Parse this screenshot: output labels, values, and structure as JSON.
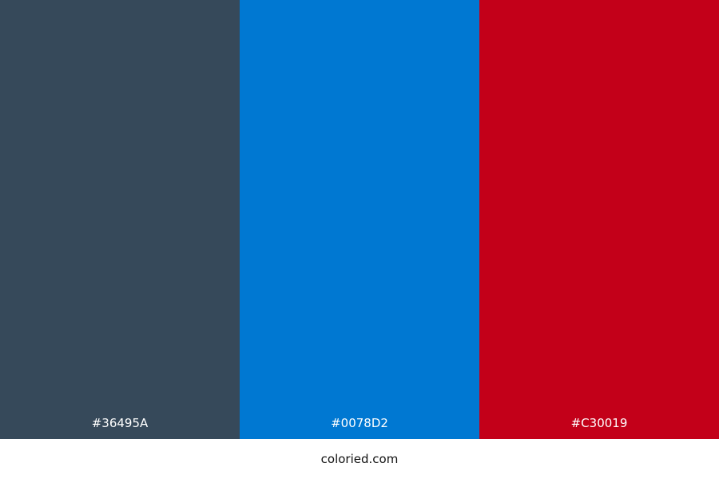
{
  "swatches": [
    {
      "hex": "#36495A",
      "label": "#36495A"
    },
    {
      "hex": "#0078D2",
      "label": "#0078D2"
    },
    {
      "hex": "#C30019",
      "label": "#C30019"
    }
  ],
  "footer": {
    "site": "coloried.com"
  }
}
